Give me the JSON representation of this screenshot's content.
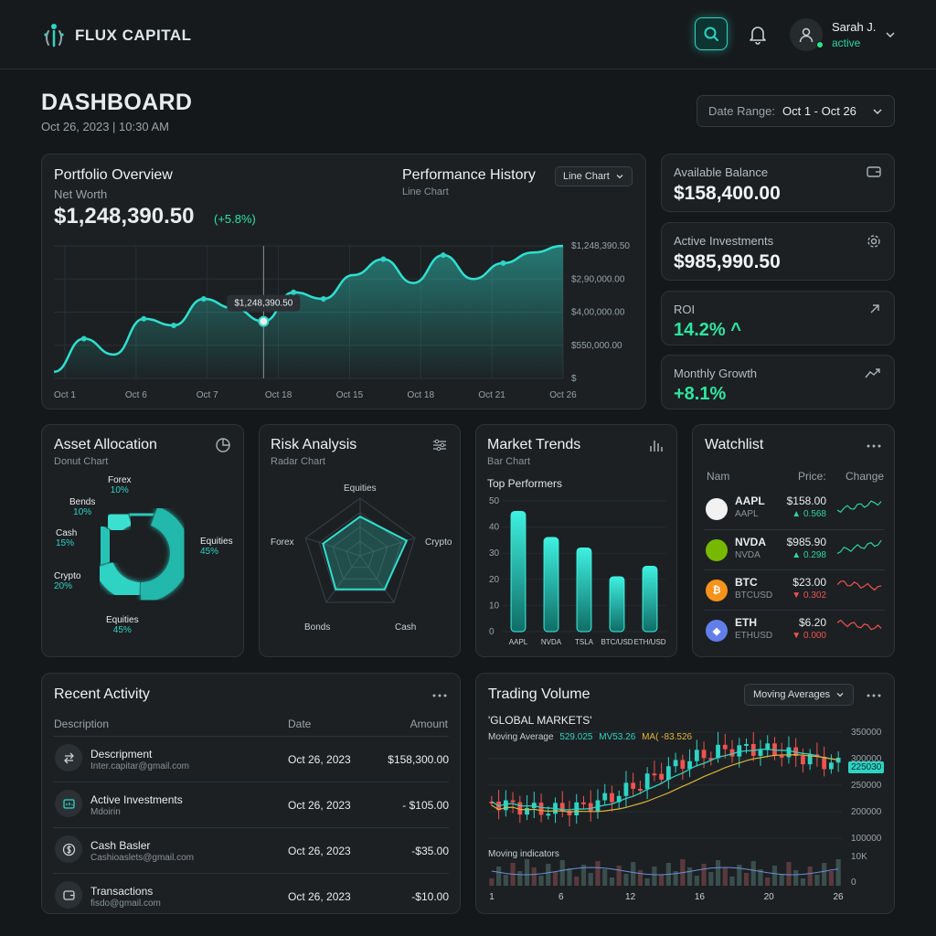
{
  "app": {
    "brand": "FLUX CAPITAL"
  },
  "user": {
    "name": "Sarah J.",
    "status": "active"
  },
  "page": {
    "title": "DASHBOARD",
    "datetime": "Oct 26, 2023 | 10:30 AM"
  },
  "date_range": {
    "label": "Date Range:",
    "value": "Oct 1 - Oct 26"
  },
  "portfolio": {
    "title": "Portfolio Overview",
    "net_worth_label": "Net Worth",
    "net_worth": "$1,248,390.50",
    "change": "(+5.8%)",
    "perf_title": "Performance History",
    "perf_sub": "Line Chart",
    "chart_type_select": "Line Chart",
    "tooltip": "$1,248,390.50"
  },
  "stats": [
    {
      "label": "Available Balance",
      "value": "$158,400.00",
      "icon": "wallet-icon"
    },
    {
      "label": "Active Investments",
      "value": "$985,990.50",
      "icon": "gear-icon"
    },
    {
      "label": "ROI",
      "value": "14.2% ^",
      "icon": "arrow-up-right-icon"
    },
    {
      "label": "Monthly Growth",
      "value": "+8.1%",
      "icon": "trend-up-icon"
    }
  ],
  "asset_allocation": {
    "title": "Asset Allocation",
    "sub": "Donut Chart",
    "segments": [
      {
        "name": "Equities",
        "pct": "45%",
        "value": 45
      },
      {
        "name": "Crypto",
        "pct": "20%",
        "value": 20
      },
      {
        "name": "Cash",
        "pct": "15%",
        "value": 15
      },
      {
        "name": "Bends",
        "pct": "10%",
        "value": 10
      },
      {
        "name": "Forex",
        "pct": "10%",
        "value": 10
      }
    ]
  },
  "risk": {
    "title": "Risk Analysis",
    "sub": "Radar Chart",
    "axes": [
      "Equities",
      "Crypto",
      "Cash",
      "Bonds",
      "Forex"
    ],
    "values": [
      0.68,
      0.85,
      0.72,
      0.72,
      0.68
    ]
  },
  "market": {
    "title": "Market Trends",
    "sub": "Bar Chart",
    "top_label": "Top Performers"
  },
  "watchlist": {
    "title": "Watchlist",
    "headers": [
      "Nam",
      "Price:",
      "Change"
    ],
    "items": [
      {
        "symbol": "AAPL",
        "name": "AAPL",
        "price": "$158.00",
        "change": "▲ 0.568",
        "dir": "up",
        "color": "#2fd3a0"
      },
      {
        "symbol": "NVDA",
        "name": "NVDA",
        "price": "$985.90",
        "change": "▲ 0.298",
        "dir": "up",
        "color": "#2fd3a0"
      },
      {
        "symbol": "BTC",
        "name": "BTCUSD",
        "price": "$23.00",
        "change": "▼ 0.302",
        "dir": "down",
        "color": "#ef5350"
      },
      {
        "symbol": "ETH",
        "name": "ETHUSD",
        "price": "$6.20",
        "change": "▼ 0.000",
        "dir": "down",
        "color": "#ef5350"
      }
    ]
  },
  "activity": {
    "title": "Recent Activity",
    "headers": [
      "Description",
      "Date",
      "Amount"
    ],
    "rows": [
      {
        "icon": "transfer-icon",
        "title": "Descripment",
        "sub": "Inter.capitar@gmail.com",
        "date": "Oct 26, 2023",
        "amount": "$158,300.00"
      },
      {
        "icon": "investment-icon",
        "title": "Active Investments",
        "sub": "Mdoirin",
        "date": "Oct 26, 2023",
        "amount": "- $105.00"
      },
      {
        "icon": "dollar-icon",
        "title": "Cash Basler",
        "sub": "Cashioaslets@gmail.com",
        "date": "Oct 26, 2023",
        "amount": "-$35.00"
      },
      {
        "icon": "wallet-icon",
        "title": "Transactions",
        "sub": "fisdo@gmail.com",
        "date": "Oct 26, 2023",
        "amount": "-$10.00"
      }
    ]
  },
  "trading": {
    "title": "Trading Volume",
    "select": "Moving Averages",
    "market_label": "'GLOBAL MARKETS'",
    "ma_label": "Moving Average",
    "ma1": "529.025",
    "ma2": "MV53.26",
    "ma3": "MA( -83.526",
    "indicator_label": "Moving indicators",
    "price_tag": "225030"
  },
  "chart_data": [
    {
      "type": "line",
      "title": "Performance History",
      "x_ticks": [
        "Oct 1",
        "Oct 6",
        "Oct 7",
        "Oct 18",
        "Oct 15",
        "Oct 18",
        "Oct 21",
        "Oct 26"
      ],
      "y_ticks": [
        "$1,248,390.50",
        "$2,90,000.00",
        "$4,00,000.00",
        "$550,000.00",
        "$"
      ],
      "values": [
        0.05,
        0.3,
        0.18,
        0.45,
        0.4,
        0.6,
        0.53,
        0.43,
        0.65,
        0.6,
        0.78,
        0.9,
        0.72,
        0.93,
        0.75,
        0.87,
        0.95,
        1.0
      ]
    },
    {
      "type": "bar",
      "title": "Top Performers",
      "categories": [
        "AAPL",
        "NVDA",
        "TSLA",
        "BTC/USD",
        "ETH/USD"
      ],
      "values": [
        46,
        36,
        32,
        21,
        25
      ],
      "ylim": [
        0,
        50
      ],
      "y_ticks": [
        "50",
        "40",
        "30",
        "20",
        "10",
        "0"
      ]
    },
    {
      "type": "candlestick",
      "title": "Trading Volume",
      "x_ticks": [
        "1",
        "6",
        "12",
        "16",
        "20",
        "26"
      ],
      "y_ticks": [
        "350000",
        "300000",
        "250000",
        "200000",
        "100000"
      ],
      "volume_ticks": [
        "10K",
        "0"
      ]
    }
  ]
}
